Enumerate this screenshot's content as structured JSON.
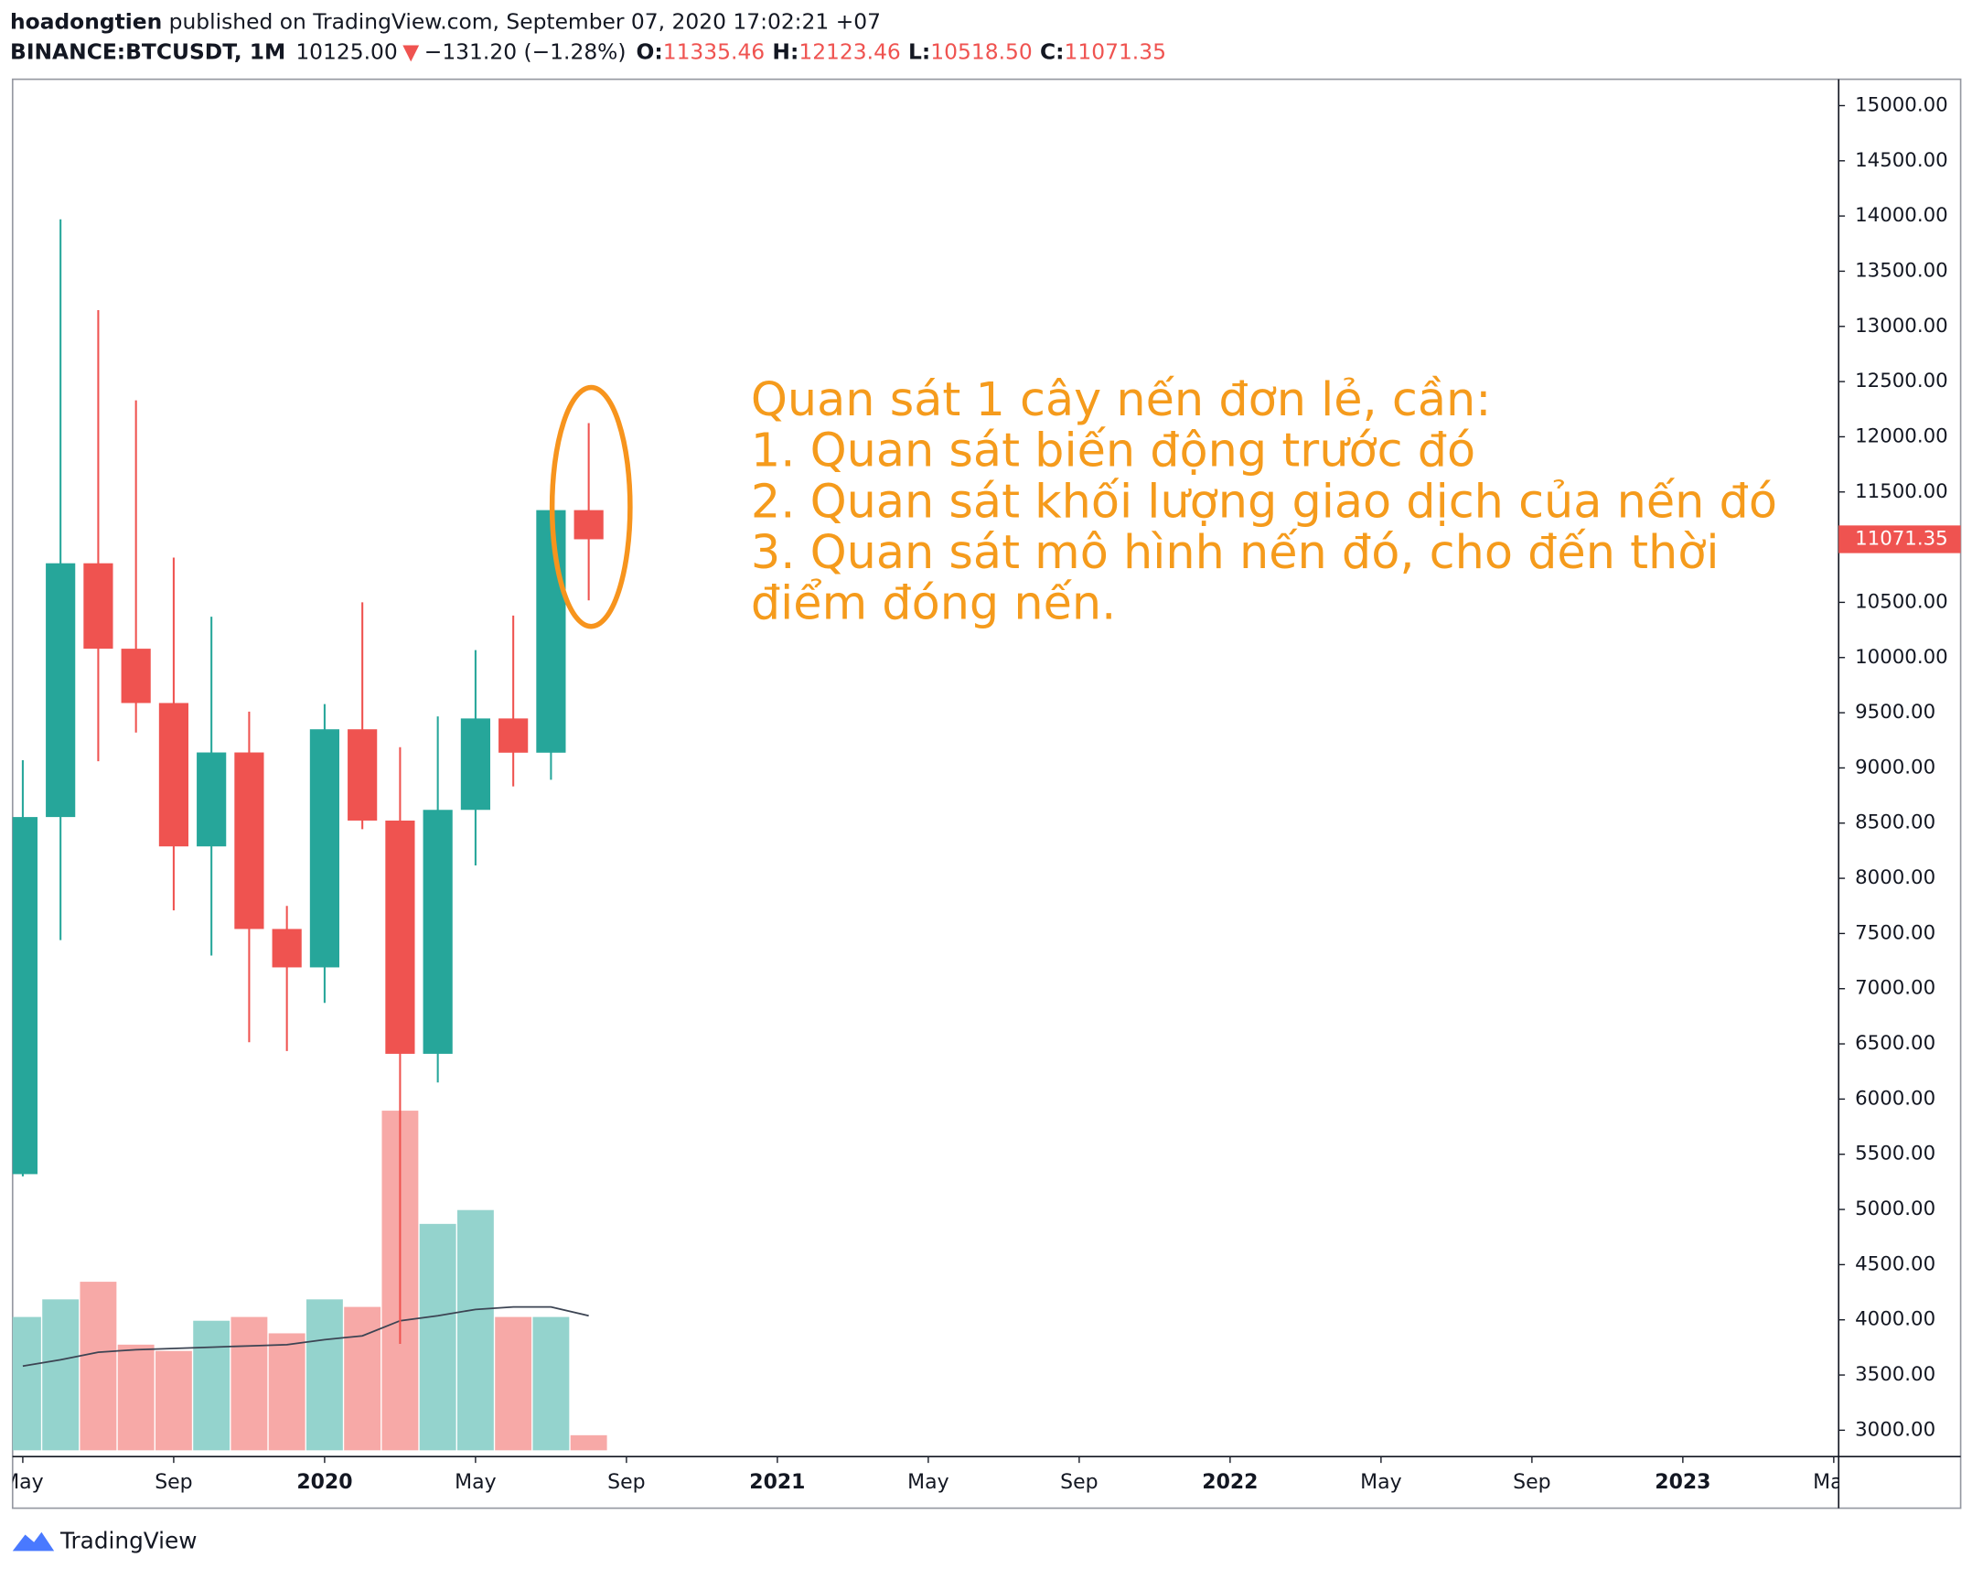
{
  "header": {
    "author": "hoadongtien",
    "published": " published on TradingView.com, September 07, 2020 17:02:21 +07",
    "symbol": "BINANCE:BTCUSDT, 1M",
    "last": "10125.00",
    "arrow": "▼",
    "change": "−131.20 (−1.28%)",
    "o_label": "O:",
    "o": "11335.46",
    "h_label": "H:",
    "h": "12123.46",
    "l_label": "L:",
    "l": "10518.50",
    "c_label": "C:",
    "c": "11071.35"
  },
  "chart_data": {
    "type": "candlestick",
    "x": [
      0,
      1,
      2,
      3,
      4,
      5,
      6,
      7,
      8,
      9,
      10,
      11,
      12,
      13,
      14,
      15
    ],
    "open": [
      5320,
      8555,
      10854,
      10080,
      9588,
      8289,
      9140,
      7541,
      7193,
      9350,
      8523,
      6410,
      8620,
      9448,
      9138,
      11335.46
    ],
    "high": [
      9070,
      13970,
      13147,
      12330,
      10905,
      10370,
      9510,
      7750,
      9578,
      10500,
      9188,
      9467,
      10067,
      10380,
      11444,
      12123.46
    ],
    "low": [
      5300,
      7440,
      9060,
      9320,
      7710,
      7300,
      6515,
      6435,
      6871,
      8445,
      3782,
      6150,
      8117,
      8833,
      8893,
      10518.5
    ],
    "close": [
      8555,
      10854,
      10080,
      9588,
      8289,
      9140,
      7541,
      7193,
      9350,
      8523,
      6410,
      8620,
      9448,
      9138,
      11335.46,
      11071.35
    ],
    "volume": [
      106,
      120,
      134,
      84,
      79,
      103,
      106,
      93,
      120,
      114,
      270,
      180,
      191,
      106,
      106,
      12
    ],
    "volume_ma": [
      67,
      72,
      78,
      80,
      81,
      82,
      83,
      84,
      88,
      91,
      103,
      107,
      112,
      114,
      114,
      107
    ],
    "colors": {
      "up": "#26a69a",
      "down": "#ef5350",
      "volume_up": "#94d3cd",
      "volume_down": "#f7a9a7",
      "ma": "#3c4453"
    },
    "ylim": [
      2761,
      15239
    ],
    "yticks": [
      {
        "value": 3000,
        "label": "3000.00"
      },
      {
        "value": 3500,
        "label": "3500.00"
      },
      {
        "value": 4000,
        "label": "4000.00"
      },
      {
        "value": 4500,
        "label": "4500.00"
      },
      {
        "value": 5000,
        "label": "5000.00"
      },
      {
        "value": 5500,
        "label": "5500.00"
      },
      {
        "value": 6000,
        "label": "6000.00"
      },
      {
        "value": 6500,
        "label": "6500.00"
      },
      {
        "value": 7000,
        "label": "7000.00"
      },
      {
        "value": 7500,
        "label": "7500.00"
      },
      {
        "value": 8000,
        "label": "8000.00"
      },
      {
        "value": 8500,
        "label": "8500.00"
      },
      {
        "value": 9000,
        "label": "9000.00"
      },
      {
        "value": 9500,
        "label": "9500.00"
      },
      {
        "value": 10000,
        "label": "10000.00"
      },
      {
        "value": 10500,
        "label": "10500.00"
      },
      {
        "value": 11000,
        "label": "11000.00"
      },
      {
        "value": 11500,
        "label": "11500.00"
      },
      {
        "value": 12000,
        "label": "12000.00"
      },
      {
        "value": 12500,
        "label": "12500.00"
      },
      {
        "value": 13000,
        "label": "13000.00"
      },
      {
        "value": 13500,
        "label": "13500.00"
      },
      {
        "value": 14000,
        "label": "14000.00"
      },
      {
        "value": 14500,
        "label": "14500.00"
      },
      {
        "value": 15000,
        "label": "15000.00"
      }
    ],
    "xlim": [
      -0.27,
      48.13
    ],
    "xticks": [
      {
        "value": 0,
        "label": "May"
      },
      {
        "value": 4,
        "label": "Sep"
      },
      {
        "value": 8,
        "label": "2020"
      },
      {
        "value": 12,
        "label": "May"
      },
      {
        "value": 16,
        "label": "Sep"
      },
      {
        "value": 20,
        "label": "2021"
      },
      {
        "value": 24,
        "label": "May"
      },
      {
        "value": 28,
        "label": "Sep"
      },
      {
        "value": 32,
        "label": "2022"
      },
      {
        "value": 36,
        "label": "May"
      },
      {
        "value": 40,
        "label": "Sep"
      },
      {
        "value": 44,
        "label": "2023"
      },
      {
        "value": 48,
        "label": "May"
      }
    ],
    "annotation": [
      "Quan sát 1 cây nến đơn lẻ, cần:",
      "1. Quan sát biến động trước đó",
      "2. Quan sát khối lượng giao dịch của nến đó",
      "3. Quan sát mô hình nến đó, cho đến thời",
      "điểm đóng nến."
    ],
    "annotation_color": "#f59b1c"
  },
  "footer": {
    "brand": "TradingView"
  }
}
